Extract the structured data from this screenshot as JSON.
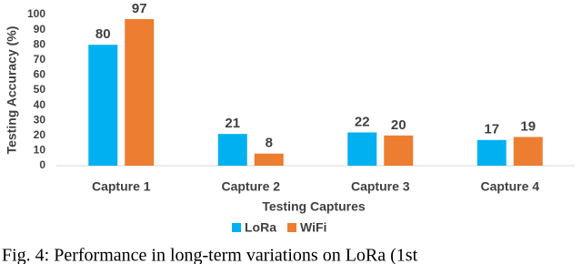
{
  "chart_data": {
    "type": "bar",
    "y_label": "Testing Accuracy (%)",
    "x_label": "Testing Captures",
    "categories": [
      "Capture 1",
      "Capture 2",
      "Capture 3",
      "Capture 4"
    ],
    "series": [
      {
        "name": "LoRa",
        "color": "#00b0f0",
        "values": [
          80,
          21,
          22,
          17
        ]
      },
      {
        "name": "WiFi",
        "color": "#ed7d31",
        "values": [
          97,
          8,
          20,
          19
        ]
      }
    ],
    "ylim": [
      0,
      100
    ],
    "yticks": [
      0,
      10,
      20,
      30,
      40,
      50,
      60,
      70,
      80,
      90,
      100
    ],
    "grid": false,
    "legend": "bottom"
  },
  "caption": "Fig. 4: Performance in long-term variations on LoRa (1st"
}
